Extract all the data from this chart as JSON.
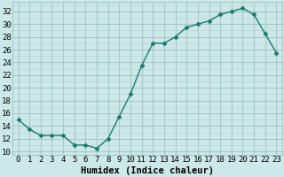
{
  "x": [
    0,
    1,
    2,
    3,
    4,
    5,
    6,
    7,
    8,
    9,
    10,
    11,
    12,
    13,
    14,
    15,
    16,
    17,
    18,
    19,
    20,
    21,
    22,
    23
  ],
  "y": [
    15,
    13.5,
    12.5,
    12.5,
    12.5,
    11,
    11,
    10.5,
    12,
    15.5,
    19,
    23.5,
    27,
    27,
    28,
    29.5,
    30,
    30.5,
    31.5,
    32,
    32.5,
    31.5,
    28.5,
    25.5
  ],
  "line_color": "#1a7a6e",
  "marker": "D",
  "marker_size": 2.5,
  "background_color": "#cce8e8",
  "grid_major_color": "#a8c8c8",
  "grid_minor_color": "#b8d8d8",
  "xlabel": "Humidex (Indice chaleur)",
  "xlim": [
    -0.5,
    23.5
  ],
  "ylim": [
    9.5,
    33.5
  ],
  "yticks": [
    10,
    12,
    14,
    16,
    18,
    20,
    22,
    24,
    26,
    28,
    30,
    32
  ],
  "xticks": [
    0,
    1,
    2,
    3,
    4,
    5,
    6,
    7,
    8,
    9,
    10,
    11,
    12,
    13,
    14,
    15,
    16,
    17,
    18,
    19,
    20,
    21,
    22,
    23
  ],
  "xtick_labels": [
    "0",
    "1",
    "2",
    "3",
    "4",
    "5",
    "6",
    "7",
    "8",
    "9",
    "10",
    "11",
    "12",
    "13",
    "14",
    "15",
    "16",
    "17",
    "18",
    "19",
    "20",
    "21",
    "22",
    "23"
  ],
  "xlabel_fontsize": 7.5,
  "tick_fontsize": 6.5
}
